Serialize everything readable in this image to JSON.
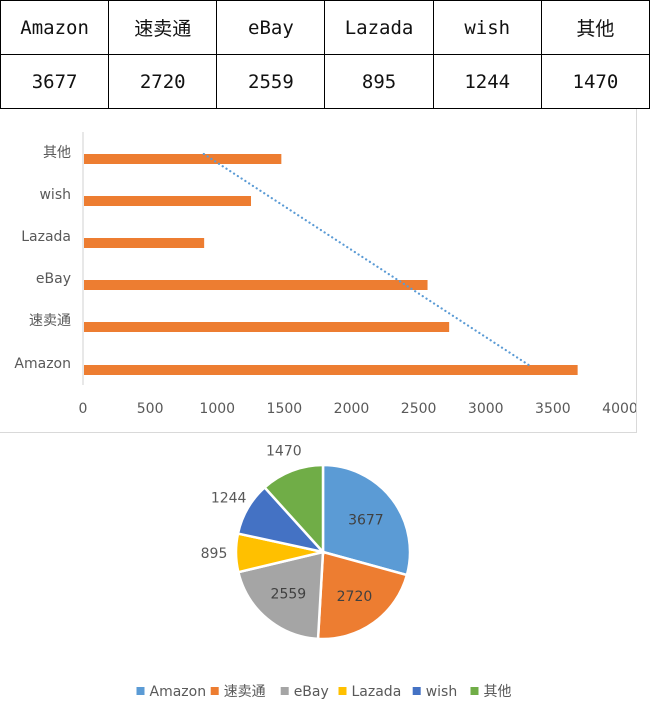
{
  "table": {
    "headers": [
      "Amazon",
      "速卖通",
      "eBay",
      "Lazada",
      "wish",
      "其他"
    ],
    "values": [
      "3677",
      "2720",
      "2559",
      "895",
      "1244",
      "1470"
    ]
  },
  "colors": {
    "bar": "#ED7D31",
    "trendline": "#5B9BD5",
    "axis": "#d9d9d9",
    "label": "#595959",
    "slices": [
      "#5B9BD5",
      "#ED7D31",
      "#A5A5A5",
      "#FFC000",
      "#4472C4",
      "#70AD47"
    ]
  },
  "chart_data": [
    {
      "type": "bar",
      "orientation": "horizontal",
      "categories": [
        "Amazon",
        "速卖通",
        "eBay",
        "Lazada",
        "wish",
        "其他"
      ],
      "values": [
        3677,
        2720,
        2559,
        895,
        1244,
        1470
      ],
      "title": "",
      "xlabel": "",
      "ylabel": "",
      "xlim": [
        0,
        4000
      ],
      "x_ticks": [
        "0",
        "500",
        "1000",
        "1500",
        "2000",
        "2500",
        "3000",
        "3500",
        "4000"
      ],
      "grid": false,
      "legend": null,
      "trendline": {
        "type": "linear",
        "style": "dotted",
        "start": {
          "category": "其他",
          "value": 900
        },
        "end": {
          "category": "Amazon",
          "value": 3320
        }
      }
    },
    {
      "type": "pie",
      "categories": [
        "Amazon",
        "速卖通",
        "eBay",
        "Lazada",
        "wish",
        "其他"
      ],
      "values": [
        3677,
        2720,
        2559,
        895,
        1244,
        1470
      ],
      "data_labels": [
        "3677",
        "2720",
        "2559",
        "895",
        "1244",
        "1470"
      ],
      "title": "",
      "legend": {
        "position": "bottom",
        "entries": [
          "Amazon",
          "速卖通",
          "eBay",
          "Lazada",
          "wish",
          "其他"
        ]
      }
    }
  ]
}
